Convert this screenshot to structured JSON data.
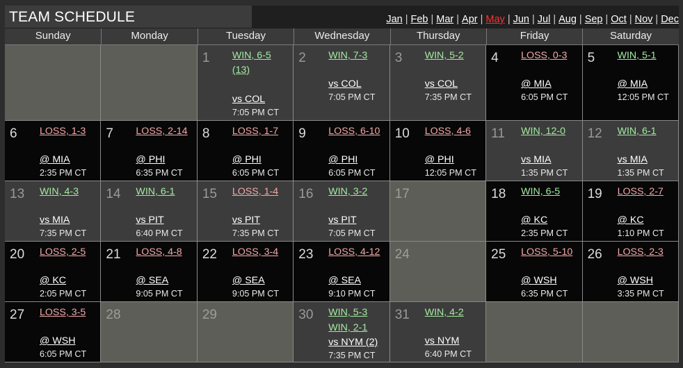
{
  "title": "TEAM SCHEDULE",
  "months": [
    {
      "label": "Jan",
      "current": false
    },
    {
      "label": "Feb",
      "current": false
    },
    {
      "label": "Mar",
      "current": false
    },
    {
      "label": "Apr",
      "current": false
    },
    {
      "label": "May",
      "current": true
    },
    {
      "label": "Jun",
      "current": false
    },
    {
      "label": "Jul",
      "current": false
    },
    {
      "label": "Aug",
      "current": false
    },
    {
      "label": "Sep",
      "current": false
    },
    {
      "label": "Oct",
      "current": false
    },
    {
      "label": "Nov",
      "current": false
    },
    {
      "label": "Dec",
      "current": false
    }
  ],
  "weekdays": [
    "Sunday",
    "Monday",
    "Tuesday",
    "Wednesday",
    "Thursday",
    "Friday",
    "Saturday"
  ],
  "colors": {
    "win": "#a4eaa0",
    "loss": "#f4a9a9",
    "current_month": "#ff3030",
    "home_bg": "#3c3c3c",
    "away_bg": "#070707",
    "empty_bg": "#5e5e58"
  },
  "days": [
    null,
    null,
    {
      "day": "1",
      "venue": "home",
      "results": [
        "WIN, 6-5 (13)"
      ],
      "opponent": "vs COL",
      "time": "7:05 PM CT"
    },
    {
      "day": "2",
      "venue": "home",
      "results": [
        "WIN, 7-3"
      ],
      "opponent": "vs COL",
      "time": "7:05 PM CT"
    },
    {
      "day": "3",
      "venue": "home",
      "results": [
        "WIN, 5-2"
      ],
      "opponent": "vs COL",
      "time": "7:35 PM CT"
    },
    {
      "day": "4",
      "venue": "away",
      "results": [
        "LOSS, 0-3"
      ],
      "opponent": "@ MIA",
      "time": "6:05 PM CT"
    },
    {
      "day": "5",
      "venue": "away",
      "results": [
        "WIN, 5-1"
      ],
      "opponent": "@ MIA",
      "time": "12:05 PM CT"
    },
    {
      "day": "6",
      "venue": "away",
      "results": [
        "LOSS, 1-3"
      ],
      "opponent": "@ MIA",
      "time": "2:35 PM CT"
    },
    {
      "day": "7",
      "venue": "away",
      "results": [
        "LOSS, 2-14"
      ],
      "opponent": "@ PHI",
      "time": "6:35 PM CT"
    },
    {
      "day": "8",
      "venue": "away",
      "results": [
        "LOSS, 1-7"
      ],
      "opponent": "@ PHI",
      "time": "6:05 PM CT"
    },
    {
      "day": "9",
      "venue": "away",
      "results": [
        "LOSS, 6-10"
      ],
      "opponent": "@ PHI",
      "time": "6:05 PM CT"
    },
    {
      "day": "10",
      "venue": "away",
      "results": [
        "LOSS, 4-6"
      ],
      "opponent": "@ PHI",
      "time": "12:05 PM CT"
    },
    {
      "day": "11",
      "venue": "home",
      "results": [
        "WIN, 12-0"
      ],
      "opponent": "vs MIA",
      "time": "1:35 PM CT"
    },
    {
      "day": "12",
      "venue": "home",
      "results": [
        "WIN, 6-1"
      ],
      "opponent": "vs MIA",
      "time": "1:35 PM CT"
    },
    {
      "day": "13",
      "venue": "home",
      "results": [
        "WIN, 4-3"
      ],
      "opponent": "vs MIA",
      "time": "7:35 PM CT"
    },
    {
      "day": "14",
      "venue": "home",
      "results": [
        "WIN, 6-1"
      ],
      "opponent": "vs PIT",
      "time": "6:40 PM CT"
    },
    {
      "day": "15",
      "venue": "home",
      "results": [
        "LOSS, 1-4"
      ],
      "opponent": "vs PIT",
      "time": "7:35 PM CT"
    },
    {
      "day": "16",
      "venue": "home",
      "results": [
        "WIN, 3-2"
      ],
      "opponent": "vs PIT",
      "time": "7:05 PM CT"
    },
    {
      "day": "17",
      "venue": "none"
    },
    {
      "day": "18",
      "venue": "away",
      "results": [
        "WIN, 6-5"
      ],
      "opponent": "@ KC",
      "time": "2:35 PM CT"
    },
    {
      "day": "19",
      "venue": "away",
      "results": [
        "LOSS, 2-7"
      ],
      "opponent": "@ KC",
      "time": "1:10 PM CT"
    },
    {
      "day": "20",
      "venue": "away",
      "results": [
        "LOSS, 2-5"
      ],
      "opponent": "@ KC",
      "time": "2:05 PM CT"
    },
    {
      "day": "21",
      "venue": "away",
      "results": [
        "LOSS, 4-8"
      ],
      "opponent": "@ SEA",
      "time": "9:05 PM CT"
    },
    {
      "day": "22",
      "venue": "away",
      "results": [
        "LOSS, 3-4"
      ],
      "opponent": "@ SEA",
      "time": "9:05 PM CT"
    },
    {
      "day": "23",
      "venue": "away",
      "results": [
        "LOSS, 4-12"
      ],
      "opponent": "@ SEA",
      "time": "9:10 PM CT"
    },
    {
      "day": "24",
      "venue": "none"
    },
    {
      "day": "25",
      "venue": "away",
      "results": [
        "LOSS, 5-10"
      ],
      "opponent": "@ WSH",
      "time": "6:35 PM CT"
    },
    {
      "day": "26",
      "venue": "away",
      "results": [
        "LOSS, 2-3"
      ],
      "opponent": "@ WSH",
      "time": "3:35 PM CT"
    },
    {
      "day": "27",
      "venue": "away",
      "results": [
        "LOSS, 3-5"
      ],
      "opponent": "@ WSH",
      "time": "6:05 PM CT"
    },
    {
      "day": "28",
      "venue": "none"
    },
    {
      "day": "29",
      "venue": "none"
    },
    {
      "day": "30",
      "venue": "home",
      "results": [
        "WIN, 5-3",
        "WIN, 2-1"
      ],
      "opponent": "vs NYM (2)",
      "time": "7:35 PM CT"
    },
    {
      "day": "31",
      "venue": "home",
      "results": [
        "WIN, 4-2"
      ],
      "opponent": "vs NYM",
      "time": "6:40 PM CT"
    },
    null,
    null
  ]
}
